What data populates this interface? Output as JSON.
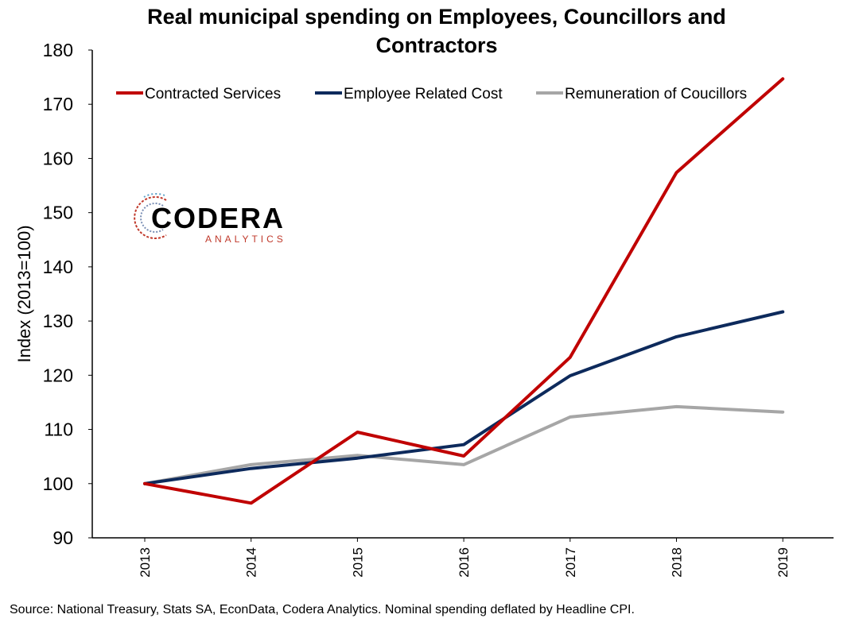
{
  "chart_data": {
    "type": "line",
    "title_line1": "Real municipal spending on Employees, Councillors and",
    "title_line2": "Contractors",
    "ylabel": "Index (2013=100)",
    "xlabel": "",
    "ylim": [
      90,
      180
    ],
    "yticks": [
      "90",
      "100",
      "110",
      "120",
      "130",
      "140",
      "150",
      "160",
      "170",
      "180"
    ],
    "categories": [
      "2013",
      "2014",
      "2015",
      "2016",
      "2017",
      "2018",
      "2019"
    ],
    "series": [
      {
        "name": "Contracted Services",
        "color": "#c00000",
        "values": [
          100,
          96.4,
          109.5,
          105.1,
          123.3,
          157.4,
          174.7
        ]
      },
      {
        "name": "Employee Related Cost",
        "color": "#0d2a5c",
        "values": [
          100,
          102.8,
          104.7,
          107.2,
          119.9,
          127.1,
          131.7
        ]
      },
      {
        "name": "Remuneration of Coucillors",
        "color": "#a6a6a6",
        "values": [
          100,
          103.5,
          105.2,
          103.5,
          112.3,
          114.2,
          113.2
        ]
      }
    ],
    "legend_position": "top",
    "grid": false
  },
  "logo": {
    "main": "CODERA",
    "sub": "ANALYTICS"
  },
  "source": "Source: National Treasury, Stats SA, EconData, Codera Analytics. Nominal spending deflated by Headline CPI."
}
